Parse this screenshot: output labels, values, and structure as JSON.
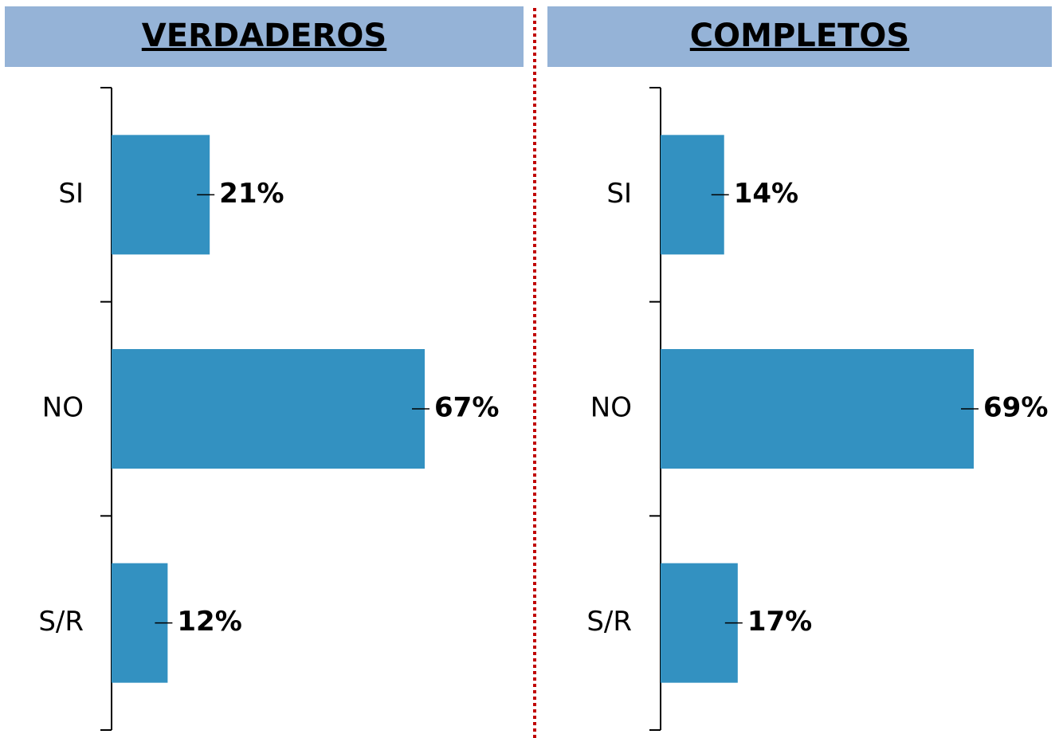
{
  "chart_data": [
    {
      "type": "bar",
      "orientation": "horizontal",
      "title": "VERDADEROS",
      "categories": [
        "SI",
        "NO",
        "S/R"
      ],
      "values": [
        21,
        67,
        12
      ],
      "value_labels": [
        "21%",
        "67%",
        "12%"
      ],
      "color": "#3391c1"
    },
    {
      "type": "bar",
      "orientation": "horizontal",
      "title": "COMPLETOS",
      "categories": [
        "SI",
        "NO",
        "S/R"
      ],
      "values": [
        14,
        69,
        17
      ],
      "value_labels": [
        "14%",
        "69%",
        "17%"
      ],
      "color": "#3391c1"
    }
  ]
}
